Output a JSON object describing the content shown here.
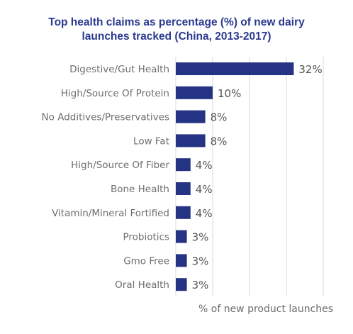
{
  "chart_data": {
    "type": "bar",
    "orientation": "horizontal",
    "title_line1": "Top health claims as percentage (%) of new dairy",
    "title_line2": "launches tracked (China, 2013-2017)",
    "xlabel": "% of new product launches",
    "ylabel": "",
    "categories": [
      "Digestive/Gut Health",
      "High/Source Of Protein",
      "No Additives/Preservatives",
      "Low Fat",
      "High/Source Of Fiber",
      "Bone Health",
      "Vitamin/Mineral Fortified",
      "Probiotics",
      "Gmo Free",
      "Oral Health"
    ],
    "values": [
      32,
      10,
      8,
      8,
      4,
      4,
      4,
      3,
      3,
      3
    ],
    "value_labels": [
      "32%",
      "10%",
      "8%",
      "8%",
      "4%",
      "4%",
      "4%",
      "3%",
      "3%",
      "3%"
    ],
    "xlim": [
      0,
      40
    ],
    "grid": "vertical",
    "bar_color": "#243384",
    "grid_color": "#d9d9d9"
  }
}
